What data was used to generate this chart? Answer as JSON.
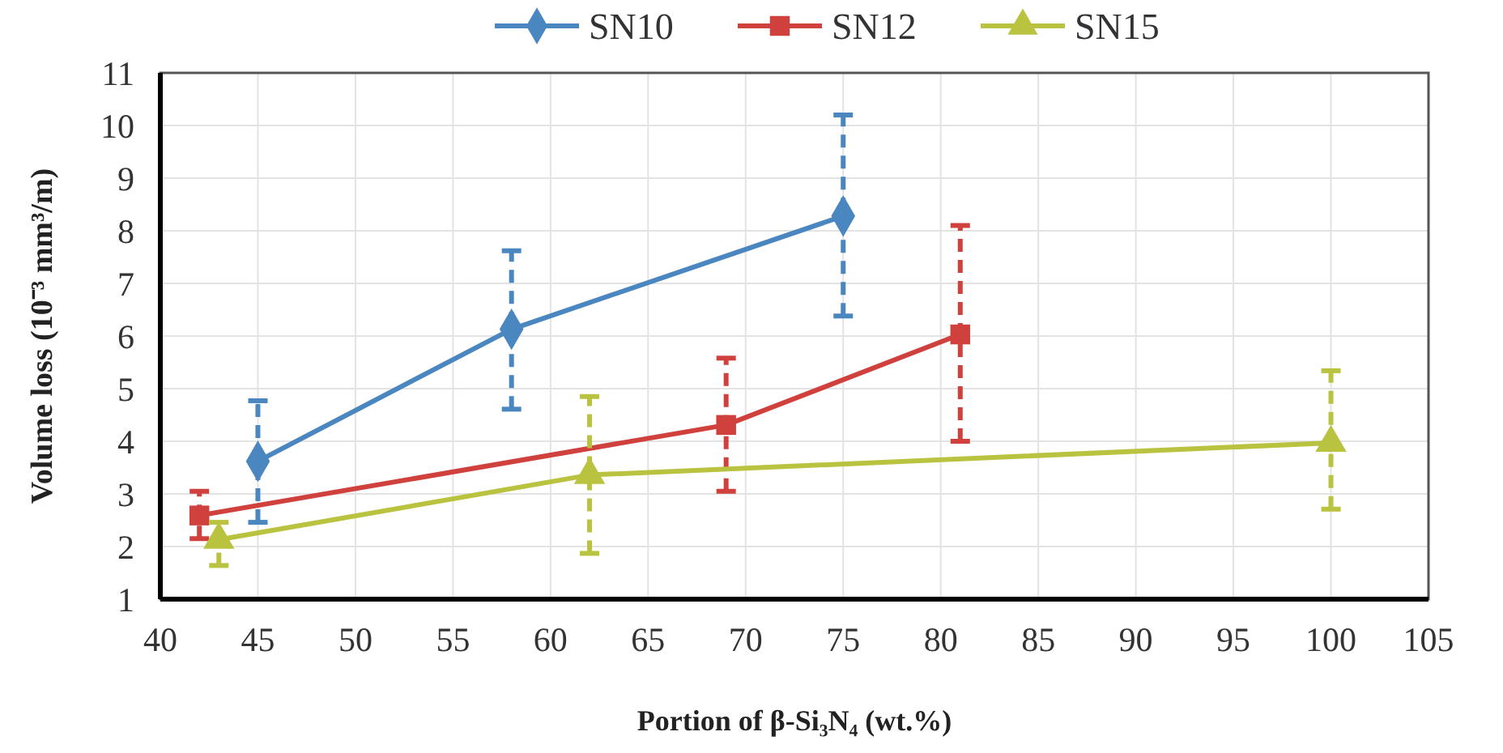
{
  "chart_data": {
    "type": "line",
    "xlabel": "Portion of β-Si₃N₄ (wt.%)",
    "ylabel": "Volume loss (10⁻³ mm³/m)",
    "xlim": [
      40,
      105
    ],
    "xticks": [
      40,
      45,
      50,
      55,
      60,
      65,
      70,
      75,
      80,
      85,
      90,
      95,
      100,
      105
    ],
    "ylim": [
      1,
      11
    ],
    "yticks": [
      1,
      2,
      3,
      4,
      5,
      6,
      7,
      8,
      9,
      10,
      11
    ],
    "grid": true,
    "legend": "top",
    "line_style": "solid",
    "series": [
      {
        "name": "SN10",
        "color": "#4a86c0",
        "marker": "diamond",
        "x": [
          45,
          58,
          75
        ],
        "values": [
          3.62,
          6.13,
          8.28
        ],
        "errors": [
          [
            2.46,
            4.77
          ],
          [
            4.61,
            7.62
          ],
          [
            6.38,
            10.2
          ]
        ]
      },
      {
        "name": "SN12",
        "color": "#d0413e",
        "marker": "square",
        "x": [
          42,
          69,
          81
        ],
        "values": [
          2.59,
          4.31,
          6.03
        ],
        "errors": [
          [
            2.15,
            3.05
          ],
          [
            3.05,
            5.58
          ],
          [
            4.0,
            8.1
          ]
        ]
      },
      {
        "name": "SN15",
        "color": "#b9c33f",
        "marker": "triangle",
        "x": [
          43,
          62,
          100
        ],
        "values": [
          2.13,
          3.36,
          3.97
        ],
        "errors": [
          [
            1.64,
            2.46
          ],
          [
            1.87,
            4.85
          ],
          [
            2.71,
            5.34
          ]
        ]
      }
    ]
  }
}
